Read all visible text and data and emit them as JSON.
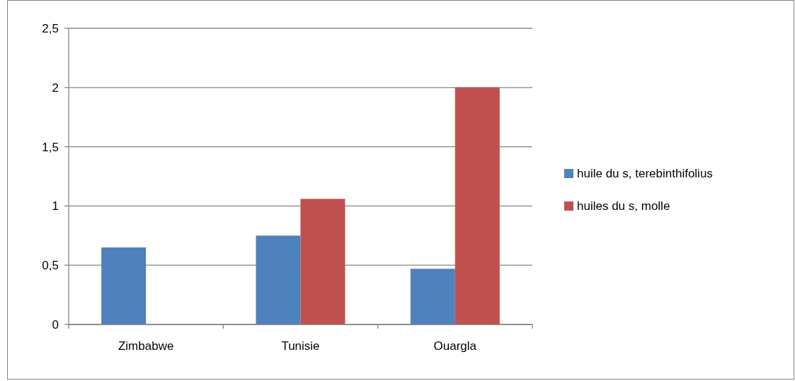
{
  "chart_data": {
    "type": "bar",
    "categories": [
      "Zimbabwe",
      "Tunisie",
      "Ouargla"
    ],
    "series": [
      {
        "name": "huile du s, terebinthifolius",
        "color": "#4f81bd",
        "values": [
          0.65,
          0.75,
          0.47
        ]
      },
      {
        "name": "huiles du s, molle",
        "color": "#c0504d",
        "values": [
          null,
          1.06,
          2.0
        ]
      }
    ],
    "ylim": [
      0,
      2.5
    ],
    "yticks": [
      0,
      {
        "value": 0.5,
        "label": "0,5"
      },
      1,
      {
        "value": 1.5,
        "label": "1,5"
      },
      2,
      {
        "value": 2.5,
        "label": "2,5"
      }
    ],
    "grid": "y",
    "legend": "right"
  }
}
